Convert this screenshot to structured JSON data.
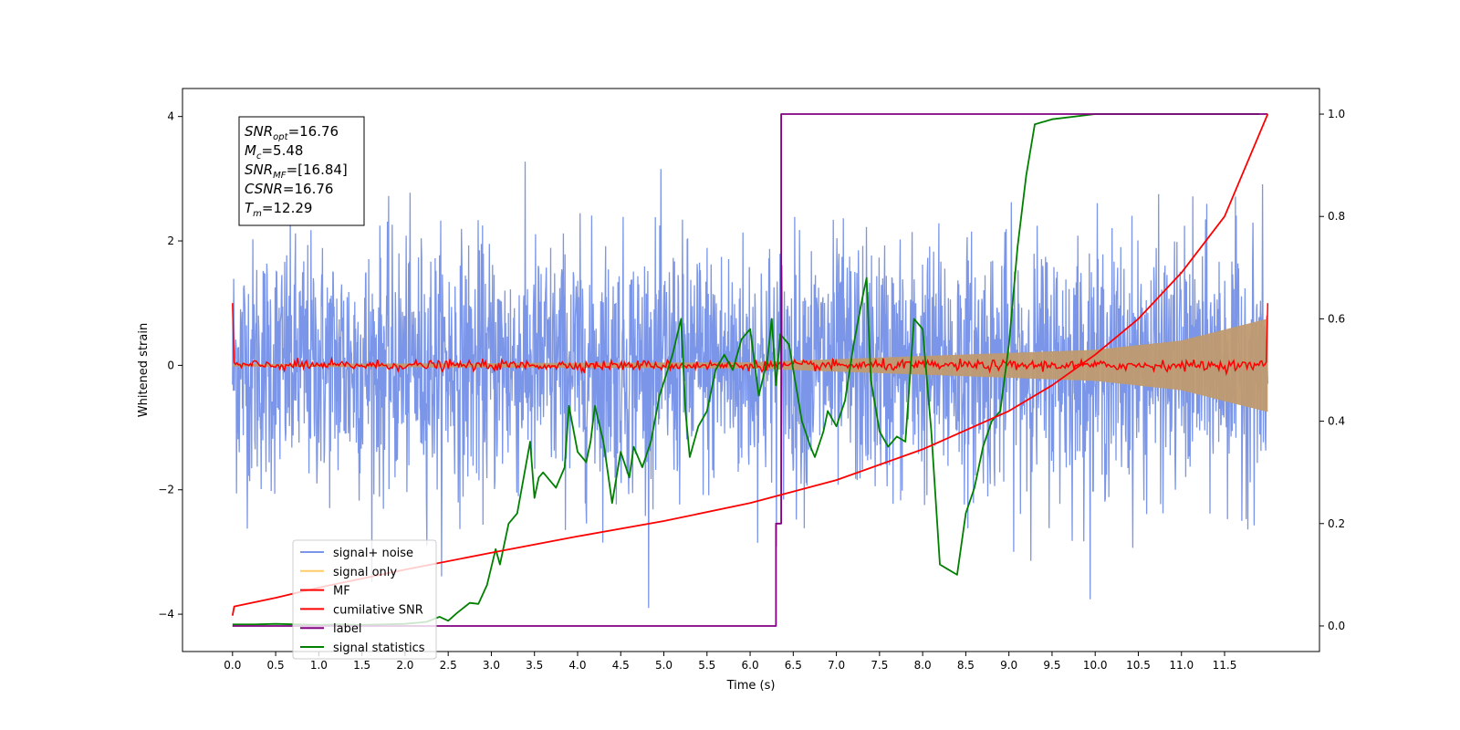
{
  "chart_data": {
    "type": "line",
    "title": "",
    "xlabel": "Time (s)",
    "ylabel": "Whitened strain",
    "y2label": "",
    "xlim": [
      -0.58,
      12.6
    ],
    "ylim": [
      -4.6,
      4.45
    ],
    "y2lim": [
      -0.05,
      1.05
    ],
    "xticks": [
      0.0,
      0.5,
      1.0,
      1.5,
      2.0,
      2.5,
      3.0,
      3.5,
      4.0,
      4.5,
      5.0,
      5.5,
      6.0,
      6.5,
      7.0,
      7.5,
      8.0,
      8.5,
      9.0,
      9.5,
      10.0,
      10.5,
      11.0,
      11.5
    ],
    "xtick_labels": [
      "0.0",
      "0.5",
      "1.0",
      "1.5",
      "2.0",
      "2.5",
      "3.0",
      "3.5",
      "4.0",
      "4.5",
      "5.0",
      "5.5",
      "6.0",
      "6.5",
      "7.0",
      "7.5",
      "8.0",
      "8.5",
      "9.0",
      "9.5",
      "10.0",
      "10.5",
      "11.0",
      "11.5"
    ],
    "yticks": [
      -4,
      -2,
      0,
      2,
      4
    ],
    "ytick_labels": [
      "−4",
      "−2",
      "0",
      "2",
      "4"
    ],
    "y2ticks": [
      0.0,
      0.2,
      0.4,
      0.6,
      0.8,
      1.0
    ],
    "y2tick_labels": [
      "0.0",
      "0.2",
      "0.4",
      "0.6",
      "0.8",
      "1.0"
    ],
    "grid": false,
    "legend_placement": "lower-left",
    "colors": {
      "signal_noise": "#7b96e8",
      "signal_only": "#ffcc66",
      "signal_fill": "#bf9a6f",
      "mf": "#ff0000",
      "cumulative_snr": "#ff0000",
      "label": "#800080",
      "signal_statistics": "#008000"
    },
    "annotation": {
      "lines": [
        {
          "base": "SNR",
          "sub": "opt",
          "value": "=16.76"
        },
        {
          "base": "M",
          "sub": "c",
          "value": "=5.48"
        },
        {
          "base": "SNR",
          "sub": "MF",
          "value": "=[16.84]"
        },
        {
          "base": "CSNR",
          "sub": "",
          "value": "=16.76"
        },
        {
          "base": "T",
          "sub": "m",
          "value": "=12.29"
        }
      ]
    },
    "series": [
      {
        "name": "signal+ noise",
        "axis": "left",
        "style": "noise",
        "t_range": [
          0.0,
          12.0
        ],
        "amplitude_sigma": 1.0
      },
      {
        "name": "signal only",
        "axis": "left",
        "style": "chirp",
        "t_range": [
          0.0,
          12.0
        ],
        "envelope": {
          "t": [
            0.0,
            6.0,
            10.0,
            11.0,
            12.0
          ],
          "amp": [
            0.02,
            0.05,
            0.25,
            0.4,
            0.75
          ]
        }
      },
      {
        "name": "MF",
        "axis": "left",
        "style": "mf",
        "t_range": [
          0.0,
          12.0
        ],
        "edge_values": [
          1.0,
          1.0
        ],
        "noise_sigma": 0.04
      },
      {
        "name": "cumilative SNR",
        "axis": "right",
        "x": [
          0.0,
          0.02,
          0.5,
          1.0,
          2.0,
          3.0,
          4.0,
          5.0,
          6.0,
          7.0,
          8.0,
          9.0,
          9.5,
          10.0,
          10.5,
          11.0,
          11.5,
          12.0
        ],
        "y": [
          0.02,
          0.038,
          0.055,
          0.075,
          0.11,
          0.143,
          0.175,
          0.205,
          0.24,
          0.285,
          0.345,
          0.42,
          0.47,
          0.53,
          0.6,
          0.69,
          0.8,
          1.0
        ]
      },
      {
        "name": "label",
        "axis": "right",
        "x": [
          0.0,
          6.3,
          6.3,
          6.36,
          6.36,
          12.0
        ],
        "y": [
          0.0,
          0.0,
          0.2,
          0.2,
          1.0,
          1.0
        ]
      },
      {
        "name": "signal statistics",
        "axis": "right",
        "x": [
          0.0,
          0.25,
          0.5,
          0.75,
          1.0,
          1.25,
          1.5,
          1.75,
          2.0,
          2.25,
          2.4,
          2.5,
          2.6,
          2.75,
          2.85,
          2.95,
          3.05,
          3.1,
          3.2,
          3.3,
          3.45,
          3.5,
          3.55,
          3.6,
          3.7,
          3.75,
          3.85,
          3.9,
          4.0,
          4.1,
          4.15,
          4.2,
          4.3,
          4.35,
          4.4,
          4.5,
          4.6,
          4.65,
          4.75,
          4.85,
          4.95,
          5.1,
          5.2,
          5.25,
          5.3,
          5.4,
          5.5,
          5.6,
          5.7,
          5.8,
          5.9,
          6.0,
          6.1,
          6.2,
          6.25,
          6.3,
          6.35,
          6.45,
          6.55,
          6.6,
          6.7,
          6.75,
          6.85,
          6.9,
          7.0,
          7.1,
          7.2,
          7.3,
          7.35,
          7.4,
          7.5,
          7.6,
          7.7,
          7.8,
          7.9,
          8.0,
          8.1,
          8.2,
          8.3,
          8.4,
          8.5,
          8.6,
          8.7,
          8.8,
          8.9,
          9.0,
          9.1,
          9.2,
          9.3,
          9.5,
          10.0,
          10.5,
          11.0,
          11.5,
          11.9
        ],
        "y": [
          0.003,
          0.003,
          0.004,
          0.003,
          0.002,
          0.003,
          0.002,
          0.003,
          0.004,
          0.008,
          0.018,
          0.01,
          0.025,
          0.045,
          0.043,
          0.08,
          0.15,
          0.12,
          0.2,
          0.22,
          0.36,
          0.25,
          0.29,
          0.3,
          0.28,
          0.27,
          0.31,
          0.43,
          0.34,
          0.32,
          0.36,
          0.43,
          0.36,
          0.3,
          0.24,
          0.34,
          0.29,
          0.35,
          0.31,
          0.36,
          0.45,
          0.53,
          0.6,
          0.42,
          0.33,
          0.39,
          0.42,
          0.5,
          0.53,
          0.5,
          0.56,
          0.58,
          0.45,
          0.52,
          0.6,
          0.47,
          0.57,
          0.55,
          0.45,
          0.4,
          0.35,
          0.33,
          0.38,
          0.42,
          0.39,
          0.44,
          0.55,
          0.64,
          0.68,
          0.48,
          0.38,
          0.35,
          0.37,
          0.36,
          0.6,
          0.58,
          0.38,
          0.12,
          0.11,
          0.1,
          0.22,
          0.27,
          0.35,
          0.4,
          0.42,
          0.55,
          0.74,
          0.88,
          0.98,
          0.99,
          1.0,
          1.0,
          1.0,
          1.0,
          1.0
        ]
      }
    ]
  }
}
